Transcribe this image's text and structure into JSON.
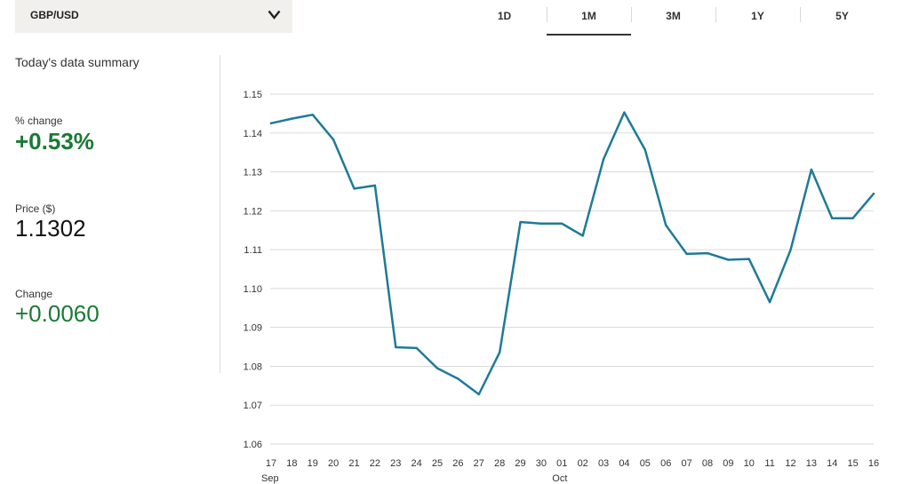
{
  "selector": {
    "label": "GBP/USD",
    "icon": "chevron-down-icon"
  },
  "tabs": [
    {
      "label": "1D",
      "active": false
    },
    {
      "label": "1M",
      "active": true
    },
    {
      "label": "3M",
      "active": false
    },
    {
      "label": "1Y",
      "active": false
    },
    {
      "label": "5Y",
      "active": false
    }
  ],
  "summary": {
    "title": "Today's data summary",
    "pct_change_label": "% change",
    "pct_change_value": "+0.53%",
    "price_label": "Price ($)",
    "price_value": "1.1302",
    "change_label": "Change",
    "change_value": "+0.0060"
  },
  "colors": {
    "line": "#1f7a99",
    "positive": "#1a7a33",
    "grid": "#d9d9d9",
    "selector_bg": "#f2f0ed"
  },
  "chart_data": {
    "type": "line",
    "ylim": [
      1.06,
      1.15
    ],
    "yticks": [
      "1.15",
      "1.14",
      "1.13",
      "1.12",
      "1.11",
      "1.10",
      "1.09",
      "1.08",
      "1.07",
      "1.06"
    ],
    "ytick_values": [
      1.15,
      1.14,
      1.13,
      1.12,
      1.11,
      1.1,
      1.09,
      1.08,
      1.07,
      1.06
    ],
    "x": [
      "17",
      "18",
      "19",
      "20",
      "21",
      "22",
      "23",
      "24",
      "25",
      "26",
      "27",
      "28",
      "29",
      "30",
      "01",
      "02",
      "03",
      "04",
      "05",
      "06",
      "07",
      "08",
      "09",
      "10",
      "11",
      "12",
      "13",
      "14",
      "15",
      "16"
    ],
    "month_labels": [
      {
        "index": 0,
        "label": "Sep"
      },
      {
        "index": 14,
        "label": "Oct"
      }
    ],
    "series": [
      {
        "values": [
          1.1425,
          1.1437,
          1.1447,
          1.1383,
          1.1257,
          1.1265,
          1.0849,
          1.0847,
          1.0795,
          1.0768,
          1.0728,
          1.0836,
          1.1171,
          1.1167,
          1.1167,
          1.1136,
          1.1333,
          1.1453,
          1.1357,
          1.1163,
          1.1089,
          1.1091,
          1.1074,
          1.1076,
          1.0965,
          1.1099,
          1.1306,
          1.1181,
          1.1181,
          1.1244
        ]
      }
    ],
    "grid": true
  }
}
